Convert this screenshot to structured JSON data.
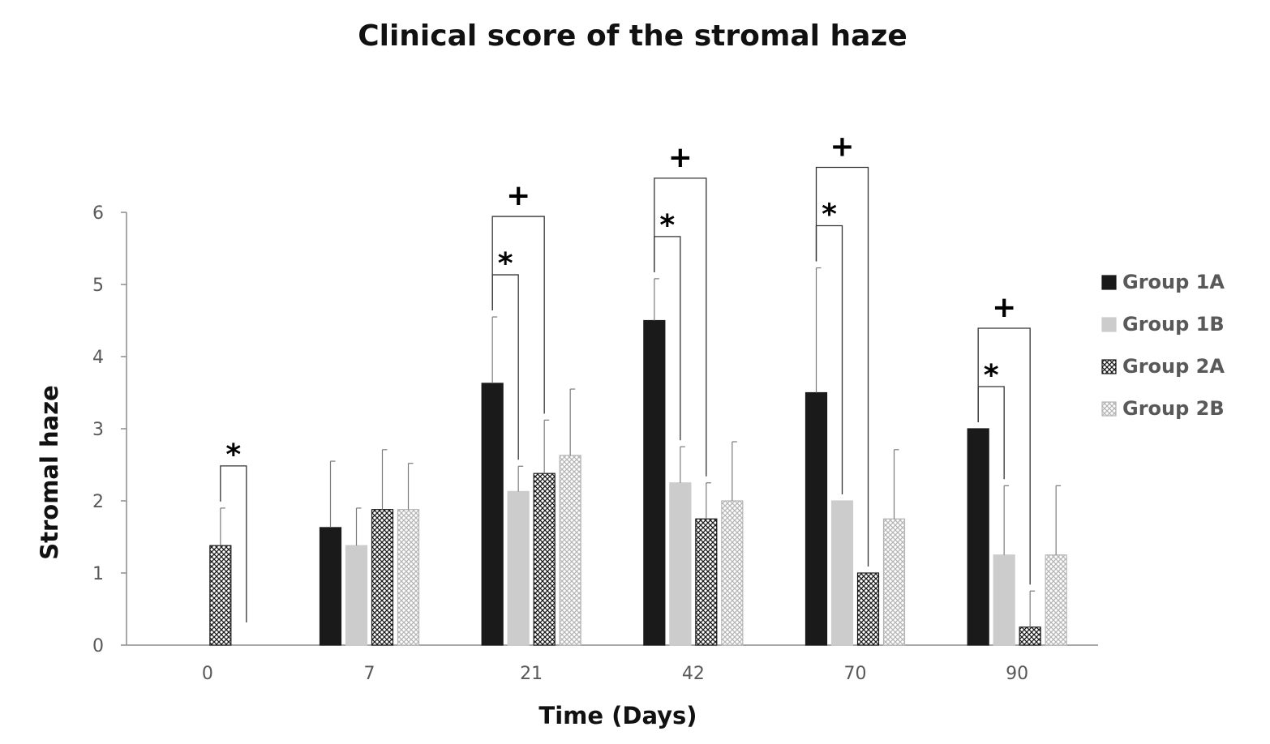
{
  "chart_data": {
    "type": "bar",
    "title": "Clinical score of the stromal haze",
    "xlabel": "Time (Days)",
    "ylabel": "Stromal haze",
    "ylim": [
      0,
      6
    ],
    "yticks": [
      0,
      1,
      2,
      3,
      4,
      5,
      6
    ],
    "categories": [
      "0",
      "7",
      "21",
      "42",
      "70",
      "90"
    ],
    "grid": false,
    "legend_position": "right",
    "series": [
      {
        "name": "Group 1A",
        "style": "solid-black",
        "color": "#1a1a1a",
        "values": [
          0,
          1.63,
          3.63,
          4.5,
          3.5,
          3.0
        ],
        "errors": [
          0,
          0.92,
          0.92,
          0.58,
          1.73,
          0
        ]
      },
      {
        "name": "Group 1B",
        "style": "solid-light-gray",
        "color": "#cccccc",
        "values": [
          0,
          1.38,
          2.13,
          2.25,
          2.0,
          1.25
        ],
        "errors": [
          0,
          0.52,
          0.35,
          0.5,
          0,
          0.96
        ]
      },
      {
        "name": "Group 2A",
        "style": "dark-crosshatch",
        "color": "#222222",
        "values": [
          1.38,
          1.88,
          2.38,
          1.75,
          1.0,
          0.25
        ],
        "errors": [
          0.52,
          0.83,
          0.74,
          0.5,
          0,
          0.5
        ]
      },
      {
        "name": "Group 2B",
        "style": "light-crosshatch",
        "color": "#bbbbbb",
        "values": [
          0,
          1.88,
          2.63,
          2.0,
          1.75,
          1.25
        ],
        "errors": [
          0,
          0.64,
          0.92,
          0.82,
          0.96,
          0.96
        ]
      }
    ],
    "annotations": [
      {
        "symbol": "*",
        "category": "0",
        "from_series": 2,
        "to_series": 3
      },
      {
        "symbol": "*",
        "category": "21",
        "from_series": 0,
        "to_series": 1
      },
      {
        "symbol": "+",
        "category": "21",
        "from_series": 0,
        "to_series": 2
      },
      {
        "symbol": "*",
        "category": "42",
        "from_series": 0,
        "to_series": 1
      },
      {
        "symbol": "+",
        "category": "42",
        "from_series": 0,
        "to_series": 2
      },
      {
        "symbol": "*",
        "category": "70",
        "from_series": 0,
        "to_series": 1
      },
      {
        "symbol": "+",
        "category": "70",
        "from_series": 0,
        "to_series": 2
      },
      {
        "symbol": "*",
        "category": "90",
        "from_series": 0,
        "to_series": 1
      },
      {
        "symbol": "+",
        "category": "90",
        "from_series": 0,
        "to_series": 2
      }
    ]
  }
}
